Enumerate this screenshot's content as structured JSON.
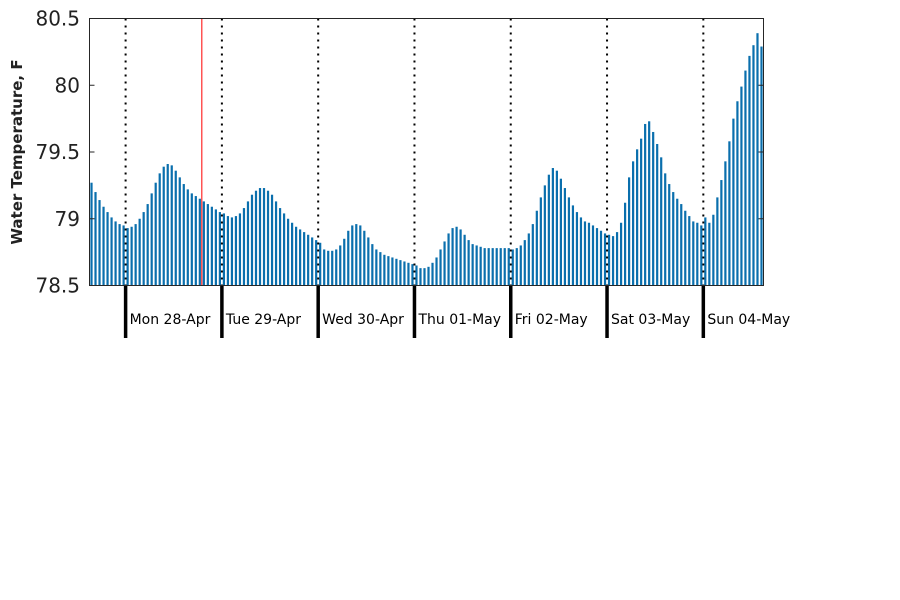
{
  "chart_data": {
    "type": "bar",
    "title": "",
    "xlabel": "",
    "ylabel": "Water Temperature, F",
    "ylim": [
      78.5,
      80.5
    ],
    "yticks": [
      78.5,
      79,
      79.5,
      80,
      80.5
    ],
    "ytick_labels": [
      "78.5",
      "79",
      "79.5",
      "80",
      "80.5"
    ],
    "grid": false,
    "bar_color": "#0a6fad",
    "marker_color": "#ff0000",
    "day_labels": [
      "Mon 28-Apr",
      "Tue 29-Apr",
      "Wed 30-Apr",
      "Thu 01-May",
      "Fri 02-May",
      "Sat 03-May",
      "Sun 04-May"
    ],
    "x_start_hours_before_first_label": 9,
    "marker_hour_after_first_label": 19,
    "values": [
      79.27,
      79.2,
      79.14,
      79.09,
      79.05,
      79.01,
      78.98,
      78.96,
      78.95,
      78.93,
      78.94,
      78.96,
      79.0,
      79.05,
      79.11,
      79.19,
      79.27,
      79.34,
      79.39,
      79.41,
      79.4,
      79.36,
      79.31,
      79.26,
      79.22,
      79.19,
      79.17,
      79.15,
      79.13,
      79.11,
      79.09,
      79.07,
      79.05,
      79.04,
      79.02,
      79.01,
      79.02,
      79.04,
      79.08,
      79.13,
      79.18,
      79.21,
      79.23,
      79.23,
      79.21,
      79.18,
      79.13,
      79.08,
      79.04,
      79.0,
      78.97,
      78.94,
      78.92,
      78.9,
      78.88,
      78.86,
      78.84,
      78.82,
      78.77,
      78.76,
      78.76,
      78.77,
      78.8,
      78.85,
      78.91,
      78.95,
      78.96,
      78.95,
      78.91,
      78.86,
      78.81,
      78.77,
      78.75,
      78.73,
      78.72,
      78.71,
      78.7,
      78.69,
      78.68,
      78.67,
      78.66,
      78.65,
      78.63,
      78.63,
      78.64,
      78.67,
      78.71,
      78.77,
      78.83,
      78.89,
      78.93,
      78.94,
      78.92,
      78.88,
      78.84,
      78.81,
      78.8,
      78.79,
      78.78,
      78.78,
      78.78,
      78.78,
      78.78,
      78.78,
      78.78,
      78.77,
      78.78,
      78.8,
      78.84,
      78.89,
      78.96,
      79.06,
      79.16,
      79.25,
      79.33,
      79.38,
      79.36,
      79.3,
      79.23,
      79.16,
      79.1,
      79.05,
      79.01,
      78.98,
      78.97,
      78.95,
      78.93,
      78.91,
      78.89,
      78.88,
      78.87,
      78.9,
      78.97,
      79.12,
      79.31,
      79.43,
      79.52,
      79.6,
      79.71,
      79.73,
      79.65,
      79.56,
      79.46,
      79.34,
      79.26,
      79.2,
      79.15,
      79.11,
      79.06,
      79.02,
      78.98,
      78.97,
      78.95,
      79.01,
      78.97,
      79.03,
      79.16,
      79.29,
      79.43,
      79.58,
      79.75,
      79.88,
      79.99,
      80.11,
      80.22,
      80.3,
      80.39,
      80.29
    ]
  }
}
